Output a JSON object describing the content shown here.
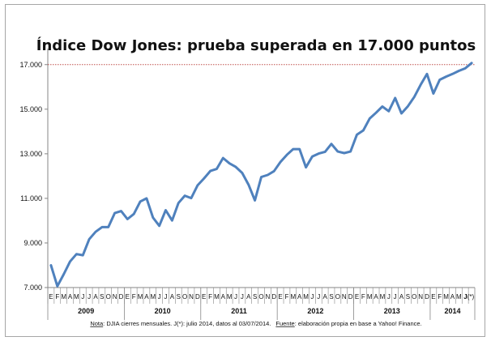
{
  "chart_data": {
    "type": "line",
    "title": "Índice Dow Jones: prueba superada en 17.000 puntos",
    "yticks": [
      "7.000",
      "9.000",
      "11.000",
      "13.000",
      "15.000",
      "17.000"
    ],
    "ylim": [
      7000,
      17500
    ],
    "reference_line": {
      "value": 17000,
      "style": "dotted",
      "color": "#c0504d"
    },
    "month_labels": [
      "E",
      "F",
      "M",
      "A",
      "M",
      "J",
      "J",
      "A",
      "S",
      "O",
      "N",
      "D"
    ],
    "last_month_label": "J(*)",
    "years": [
      "2009",
      "2010",
      "2011",
      "2012",
      "2013",
      "2014"
    ],
    "series": [
      {
        "color": "#4f81bd",
        "values": [
          8000,
          7060,
          7600,
          8170,
          8500,
          8450,
          9170,
          9500,
          9710,
          9710,
          10340,
          10430,
          10070,
          10300,
          10860,
          11000,
          10140,
          9770,
          10470,
          10010,
          10790,
          11120,
          11010,
          11580,
          11890,
          12230,
          12320,
          12810,
          12570,
          12410,
          12140,
          11610,
          10910,
          11960,
          12050,
          12220,
          12630,
          12950,
          13210,
          13210,
          12390,
          12880,
          13010,
          13090,
          13440,
          13100,
          13030,
          13100,
          13860,
          14050,
          14580,
          14840,
          15120,
          14910,
          15500,
          14810,
          15130,
          15550,
          16090,
          16580,
          15700,
          16320,
          16460,
          16580,
          16720,
          16830,
          17070
        ]
      }
    ],
    "grid": false,
    "legend": "none"
  },
  "footnote": {
    "note_label": "Nota",
    "note_text": ": DJIA cierres mensuales.  J(*): julio 2014, datos al 03/07/2014.",
    "source_label": "Fuente",
    "source_text": ": elaboración propia en base a Yahoo! Finance."
  }
}
